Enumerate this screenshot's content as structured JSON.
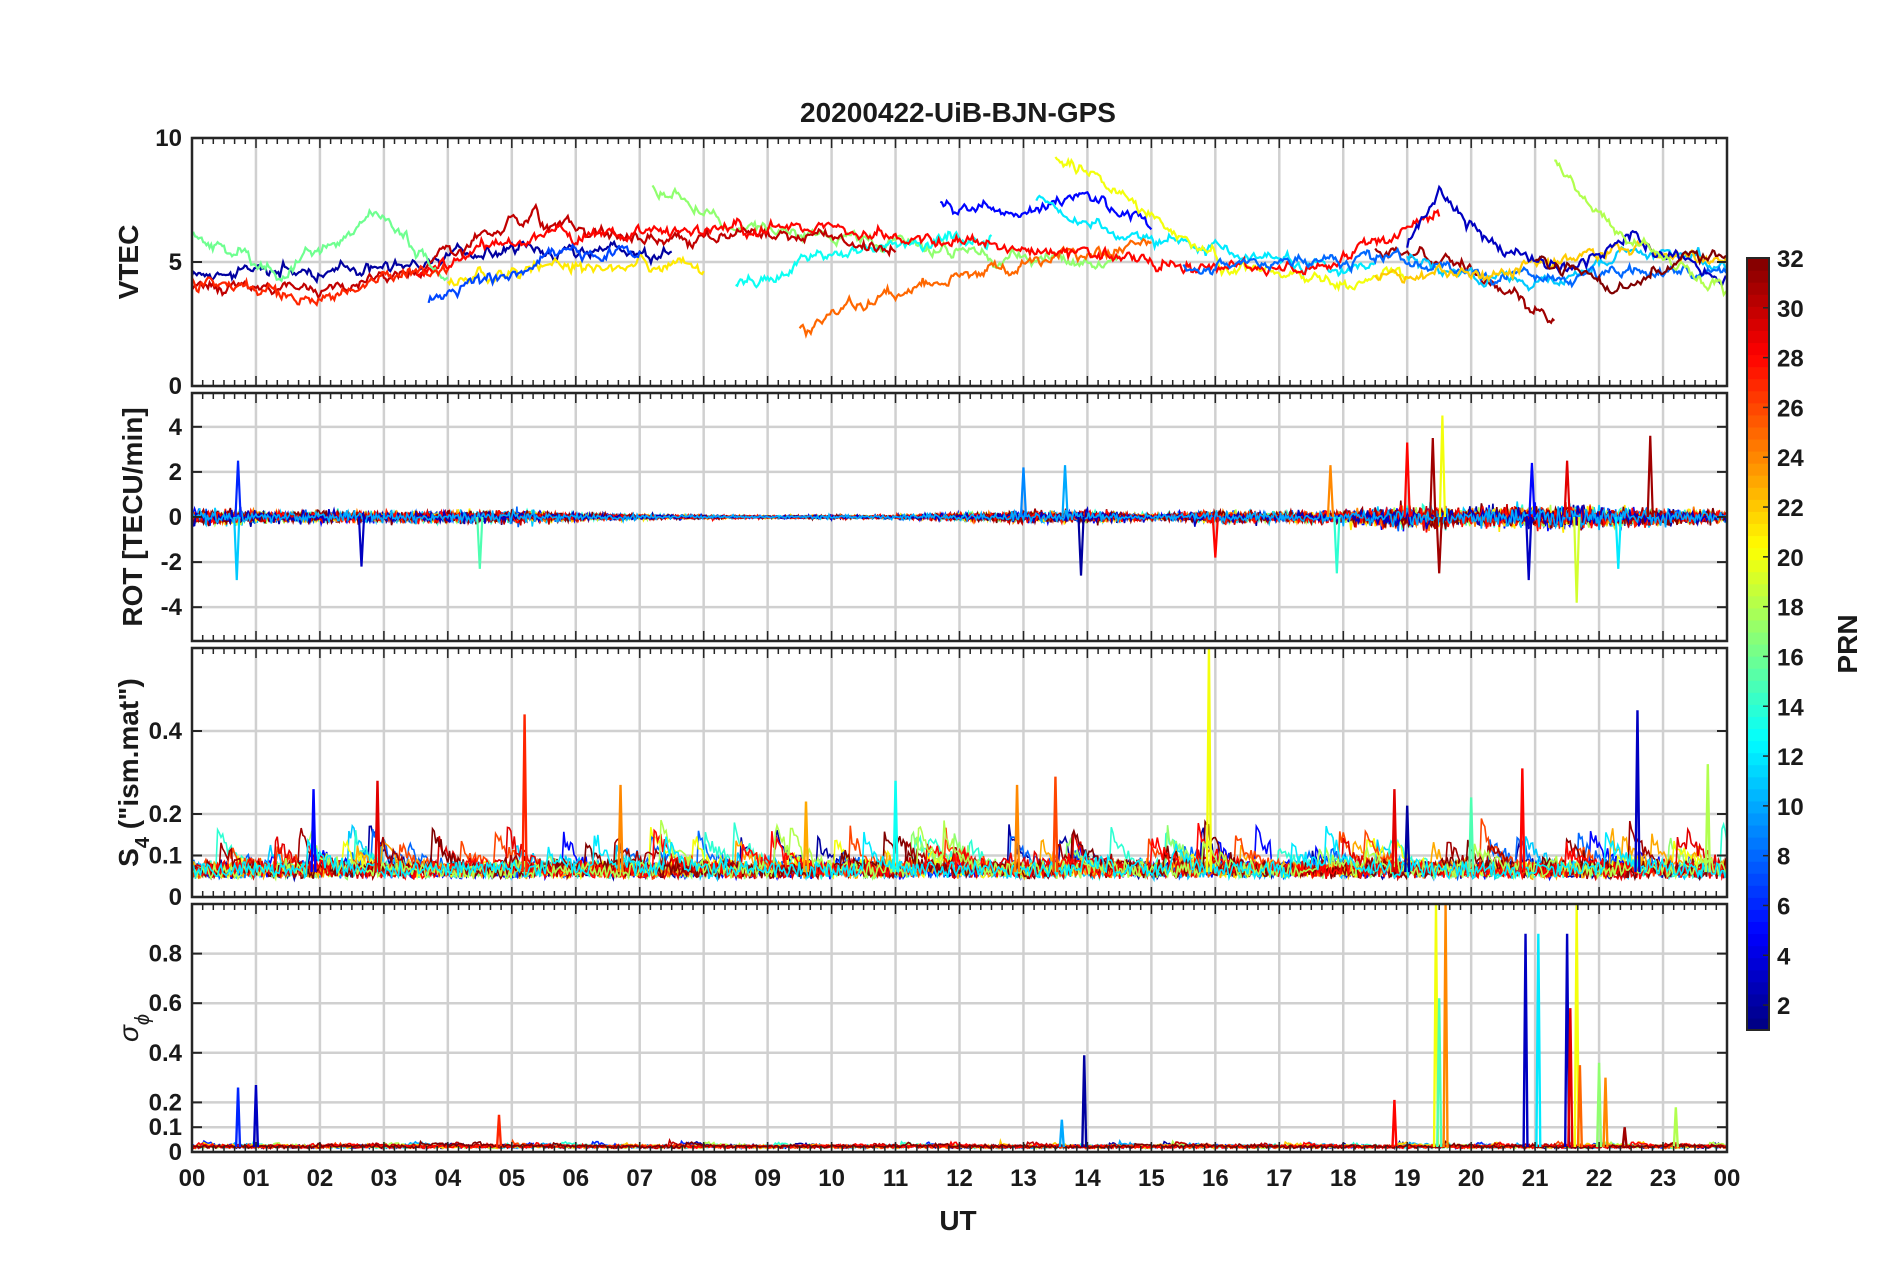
{
  "chart_data": {
    "type": "line",
    "title": "20200422-UiB-BJN-GPS",
    "xlabel": "UT",
    "x_tick_labels": [
      "00",
      "01",
      "02",
      "03",
      "04",
      "05",
      "06",
      "07",
      "08",
      "09",
      "10",
      "11",
      "12",
      "13",
      "14",
      "15",
      "16",
      "17",
      "18",
      "19",
      "20",
      "21",
      "22",
      "23",
      "00"
    ],
    "xlim": [
      0,
      24
    ],
    "grid": true,
    "colormap": "jet",
    "colorbar": {
      "label": "PRN",
      "range": [
        1,
        32
      ],
      "tick_values": [
        2,
        4,
        6,
        8,
        10,
        12,
        14,
        16,
        18,
        20,
        22,
        24,
        26,
        28,
        30,
        32
      ],
      "tick_labels": [
        "2",
        "4",
        "6",
        "8",
        "10",
        "12",
        "14",
        "16",
        "18",
        "20",
        "22",
        "24",
        "26",
        "28",
        "30",
        "32"
      ]
    },
    "panels": [
      {
        "id": "vtec",
        "ylabel": "VTEC",
        "ylim": [
          0,
          10
        ],
        "yticks": [
          0,
          5,
          10
        ],
        "ytick_labels": [
          "0",
          "5",
          "10"
        ],
        "baseline": 5,
        "noise": 0.35,
        "series": [
          {
            "prn": 2,
            "x": [
              0,
              2,
              4,
              6,
              7.5
            ],
            "y": [
              4.5,
              4.6,
              5.2,
              5.6,
              5.3
            ]
          },
          {
            "prn": 5,
            "x": [
              11.7,
              13,
              14,
              15
            ],
            "y": [
              7.5,
              7.0,
              7.8,
              6.4
            ]
          },
          {
            "prn": 12,
            "x": [
              13.2,
              14.0,
              15.5,
              17,
              18.5
            ],
            "y": [
              7.6,
              6.5,
              5.6,
              5.0,
              4.7
            ]
          },
          {
            "prn": 20,
            "x": [
              13.5,
              15,
              16,
              17.5,
              19
            ],
            "y": [
              9.2,
              7.0,
              5.0,
              4.2,
              4.5
            ]
          },
          {
            "prn": 17,
            "x": [
              7.2,
              8.5,
              10,
              11.5,
              13,
              14.5
            ],
            "y": [
              8.0,
              6.5,
              6.0,
              5.6,
              5.2,
              5.0
            ]
          },
          {
            "prn": 25,
            "x": [
              9.5,
              11,
              12.5,
              14,
              15
            ],
            "y": [
              2.4,
              3.8,
              4.7,
              5.4,
              5.6
            ]
          },
          {
            "prn": 13,
            "x": [
              8.5,
              9.5,
              10.5,
              11.5,
              12.5
            ],
            "y": [
              4.0,
              5.0,
              5.5,
              5.8,
              6.0
            ]
          },
          {
            "prn": 30,
            "x": [
              0,
              2,
              3.5,
              5,
              7,
              9,
              11
            ],
            "y": [
              4.0,
              4.0,
              4.4,
              6.8,
              6.0,
              6.2,
              5.5
            ]
          },
          {
            "prn": 28,
            "x": [
              3.5,
              5,
              6.5,
              8,
              10,
              12,
              14,
              16,
              17.5,
              19.5
            ],
            "y": [
              4.5,
              6.0,
              6.0,
              6.2,
              6.4,
              5.8,
              5.3,
              4.8,
              4.6,
              7.0
            ]
          },
          {
            "prn": 31,
            "x": [
              18.5,
              20,
              21.3
            ],
            "y": [
              5.5,
              4.8,
              2.7
            ]
          },
          {
            "prn": 11,
            "x": [
              19,
              20,
              21.2,
              22.5,
              24
            ],
            "y": [
              5.0,
              4.5,
              4.0,
              5.5,
              4.8
            ]
          },
          {
            "prn": 8,
            "x": [
              15.5,
              17,
              18.5,
              20.5,
              22,
              24
            ],
            "y": [
              4.8,
              5.0,
              5.2,
              4.3,
              4.5,
              4.5
            ]
          },
          {
            "prn": 22,
            "x": [
              18.5,
              20,
              21.5,
              22.5,
              24
            ],
            "y": [
              4.5,
              4.5,
              5.0,
              5.5,
              5.0
            ]
          },
          {
            "prn": 3,
            "x": [
              19,
              19.5,
              20.5,
              21.5,
              22.5,
              24
            ],
            "y": [
              5.5,
              7.8,
              5.5,
              4.8,
              6.0,
              4.0
            ]
          },
          {
            "prn": 18,
            "x": [
              21.3,
              22,
              23,
              24
            ],
            "y": [
              9.0,
              7.0,
              5.0,
              3.8
            ]
          },
          {
            "prn": 32,
            "x": [
              21,
              22.2,
              23.5,
              24
            ],
            "y": [
              5.0,
              4.0,
              5.3,
              5.3
            ]
          },
          {
            "prn": 16,
            "x": [
              0,
              1.5,
              2.8,
              4.0
            ],
            "y": [
              6.0,
              4.5,
              7.0,
              4.5
            ]
          },
          {
            "prn": 21,
            "x": [
              4.0,
              5.5,
              7,
              8
            ],
            "y": [
              4.2,
              4.8,
              4.8,
              4.9
            ]
          },
          {
            "prn": 27,
            "x": [
              0,
              1,
              2,
              3,
              4
            ],
            "y": [
              4.2,
              3.8,
              3.4,
              4.5,
              4.8
            ]
          },
          {
            "prn": 7,
            "x": [
              3.7,
              5,
              6,
              7
            ],
            "y": [
              3.6,
              4.5,
              5.5,
              5.3
            ]
          }
        ]
      },
      {
        "id": "rot",
        "ylabel": "ROT [TECU/min]",
        "ylim": [
          -5.5,
          5.5
        ],
        "yticks": [
          -4,
          -2,
          0,
          2,
          4
        ],
        "ytick_labels": [
          "-4",
          "-2",
          "0",
          "2",
          "4"
        ],
        "noise_profile": {
          "hours": [
            0,
            2,
            4,
            5,
            6,
            7,
            8,
            9,
            10,
            11,
            12,
            13,
            14,
            15,
            16,
            17,
            18,
            19,
            20,
            21,
            22,
            23,
            24
          ],
          "amplitude": [
            0.8,
            0.6,
            0.6,
            0.7,
            0.4,
            0.3,
            0.2,
            0.15,
            0.2,
            0.2,
            0.4,
            0.6,
            0.7,
            0.3,
            0.7,
            0.5,
            0.7,
            1.2,
            0.9,
            1.3,
            1.2,
            0.9,
            0.6
          ]
        },
        "spikes": [
          {
            "x": 0.72,
            "y": 2.5,
            "prn": 6
          },
          {
            "x": 0.7,
            "y": -2.8,
            "prn": 11
          },
          {
            "x": 2.65,
            "y": -2.2,
            "prn": 3
          },
          {
            "x": 4.5,
            "y": -2.3,
            "prn": 15
          },
          {
            "x": 13.0,
            "y": 2.2,
            "prn": 9
          },
          {
            "x": 13.65,
            "y": 2.3,
            "prn": 10
          },
          {
            "x": 13.9,
            "y": -2.6,
            "prn": 2
          },
          {
            "x": 16.0,
            "y": -1.8,
            "prn": 28
          },
          {
            "x": 17.8,
            "y": 2.3,
            "prn": 24
          },
          {
            "x": 17.9,
            "y": -2.5,
            "prn": 14
          },
          {
            "x": 19.0,
            "y": 3.3,
            "prn": 28
          },
          {
            "x": 19.4,
            "y": 3.5,
            "prn": 31
          },
          {
            "x": 19.55,
            "y": 4.5,
            "prn": 20
          },
          {
            "x": 19.5,
            "y": -2.5,
            "prn": 31
          },
          {
            "x": 20.9,
            "y": -2.8,
            "prn": 3
          },
          {
            "x": 20.95,
            "y": 2.4,
            "prn": 5
          },
          {
            "x": 21.5,
            "y": 2.5,
            "prn": 29
          },
          {
            "x": 21.65,
            "y": -3.8,
            "prn": 19
          },
          {
            "x": 22.3,
            "y": -2.3,
            "prn": 12
          },
          {
            "x": 22.8,
            "y": 3.6,
            "prn": 31
          }
        ]
      },
      {
        "id": "s4",
        "ylabel": "S4 (\"ism.mat\")",
        "ylabel_main": "S",
        "ylabel_sub": "4",
        "ylabel_rest": " (\"ism.mat\")",
        "ylim": [
          0,
          0.6
        ],
        "yticks": [
          0,
          0.1,
          0.2,
          0.4
        ],
        "ytick_labels": [
          "0",
          "0.1",
          "0.2",
          "0.4"
        ],
        "baseline": 0.06,
        "spikes": [
          {
            "x": 1.9,
            "y": 0.26,
            "prn": 5
          },
          {
            "x": 2.9,
            "y": 0.28,
            "prn": 29
          },
          {
            "x": 5.2,
            "y": 0.44,
            "prn": 27
          },
          {
            "x": 6.7,
            "y": 0.27,
            "prn": 24
          },
          {
            "x": 11.0,
            "y": 0.28,
            "prn": 13
          },
          {
            "x": 13.5,
            "y": 0.29,
            "prn": 26
          },
          {
            "x": 15.9,
            "y": 0.6,
            "prn": 20
          },
          {
            "x": 18.8,
            "y": 0.26,
            "prn": 29
          },
          {
            "x": 19.0,
            "y": 0.22,
            "prn": 2
          },
          {
            "x": 20.0,
            "y": 0.24,
            "prn": 15
          },
          {
            "x": 20.8,
            "y": 0.31,
            "prn": 28
          },
          {
            "x": 22.6,
            "y": 0.45,
            "prn": 3
          },
          {
            "x": 23.7,
            "y": 0.32,
            "prn": 18
          },
          {
            "x": 12.9,
            "y": 0.27,
            "prn": 24
          },
          {
            "x": 9.6,
            "y": 0.23,
            "prn": 23
          }
        ]
      },
      {
        "id": "sigma_phi",
        "ylabel_main": "σ",
        "ylabel_sub": "ϕ",
        "ylim": [
          0,
          1.0
        ],
        "yticks": [
          0,
          0.1,
          0.2,
          0.4,
          0.6,
          0.8
        ],
        "ytick_labels": [
          "0",
          "0.1",
          "0.2",
          "0.4",
          "0.6",
          "0.8"
        ],
        "baseline": 0.02,
        "spikes": [
          {
            "x": 0.72,
            "y": 0.26,
            "prn": 6
          },
          {
            "x": 1.0,
            "y": 0.27,
            "prn": 3
          },
          {
            "x": 4.8,
            "y": 0.15,
            "prn": 27
          },
          {
            "x": 13.6,
            "y": 0.13,
            "prn": 10
          },
          {
            "x": 13.95,
            "y": 0.39,
            "prn": 2
          },
          {
            "x": 18.8,
            "y": 0.21,
            "prn": 28
          },
          {
            "x": 19.45,
            "y": 1.0,
            "prn": 20
          },
          {
            "x": 19.5,
            "y": 0.62,
            "prn": 15
          },
          {
            "x": 19.6,
            "y": 1.0,
            "prn": 24
          },
          {
            "x": 20.85,
            "y": 0.88,
            "prn": 3
          },
          {
            "x": 21.05,
            "y": 0.88,
            "prn": 12
          },
          {
            "x": 21.5,
            "y": 0.88,
            "prn": 3
          },
          {
            "x": 21.55,
            "y": 0.58,
            "prn": 29
          },
          {
            "x": 21.65,
            "y": 1.0,
            "prn": 20
          },
          {
            "x": 21.7,
            "y": 0.35,
            "prn": 25
          },
          {
            "x": 22.0,
            "y": 0.36,
            "prn": 17
          },
          {
            "x": 22.1,
            "y": 0.3,
            "prn": 24
          },
          {
            "x": 22.4,
            "y": 0.1,
            "prn": 31
          },
          {
            "x": 23.2,
            "y": 0.18,
            "prn": 18
          }
        ]
      }
    ]
  }
}
